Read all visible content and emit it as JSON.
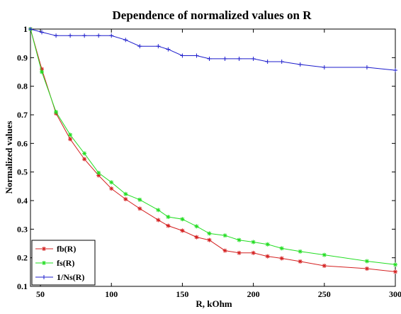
{
  "chart_data": {
    "type": "line",
    "title": "Dependence of normalized values on R",
    "xlabel": "R, kOhm",
    "ylabel": "Normalized values",
    "xlim": [
      43,
      300
    ],
    "ylim": [
      0.1,
      1.0
    ],
    "xticks": [
      "50",
      "100",
      "150",
      "200",
      "250",
      "300"
    ],
    "yticks": [
      "0.1",
      "0.2",
      "0.3",
      "0.4",
      "0.5",
      "0.6",
      "0.7",
      "0.8",
      "0.9",
      "1"
    ],
    "grid": false,
    "legend_position": "bottom-left",
    "series": [
      {
        "name": "fb(R)",
        "color": "#d42020",
        "marker": "star",
        "points": [
          [
            43,
            1.0
          ],
          [
            51,
            0.86
          ],
          [
            61,
            0.705
          ],
          [
            71,
            0.615
          ],
          [
            81,
            0.545
          ],
          [
            91,
            0.488
          ],
          [
            100,
            0.442
          ],
          [
            110,
            0.405
          ],
          [
            120,
            0.372
          ],
          [
            133,
            0.332
          ],
          [
            140,
            0.312
          ],
          [
            150,
            0.295
          ],
          [
            160,
            0.272
          ],
          [
            169,
            0.262
          ],
          [
            180,
            0.225
          ],
          [
            190,
            0.217
          ],
          [
            200,
            0.217
          ],
          [
            210,
            0.205
          ],
          [
            220,
            0.198
          ],
          [
            233,
            0.187
          ],
          [
            250,
            0.172
          ],
          [
            280,
            0.162
          ],
          [
            300,
            0.151
          ]
        ]
      },
      {
        "name": "fs(R)",
        "color": "#22dd22",
        "marker": "star",
        "points": [
          [
            43,
            1.0
          ],
          [
            51,
            0.85
          ],
          [
            61,
            0.71
          ],
          [
            71,
            0.63
          ],
          [
            81,
            0.565
          ],
          [
            91,
            0.497
          ],
          [
            100,
            0.464
          ],
          [
            110,
            0.423
          ],
          [
            120,
            0.403
          ],
          [
            133,
            0.367
          ],
          [
            140,
            0.343
          ],
          [
            150,
            0.335
          ],
          [
            160,
            0.31
          ],
          [
            169,
            0.285
          ],
          [
            180,
            0.278
          ],
          [
            190,
            0.262
          ],
          [
            200,
            0.255
          ],
          [
            210,
            0.247
          ],
          [
            220,
            0.233
          ],
          [
            233,
            0.222
          ],
          [
            250,
            0.21
          ],
          [
            280,
            0.188
          ],
          [
            300,
            0.176
          ]
        ]
      },
      {
        "name": "1/Ns(R)",
        "color": "#1c1ccc",
        "marker": "plus",
        "points": [
          [
            43,
            1.0
          ],
          [
            51,
            0.989
          ],
          [
            61,
            0.977
          ],
          [
            71,
            0.977
          ],
          [
            81,
            0.977
          ],
          [
            91,
            0.977
          ],
          [
            100,
            0.977
          ],
          [
            110,
            0.962
          ],
          [
            120,
            0.94
          ],
          [
            133,
            0.94
          ],
          [
            140,
            0.929
          ],
          [
            150,
            0.907
          ],
          [
            160,
            0.907
          ],
          [
            169,
            0.896
          ],
          [
            180,
            0.896
          ],
          [
            190,
            0.896
          ],
          [
            200,
            0.896
          ],
          [
            210,
            0.886
          ],
          [
            220,
            0.886
          ],
          [
            233,
            0.876
          ],
          [
            250,
            0.866
          ],
          [
            280,
            0.866
          ],
          [
            300,
            0.856
          ]
        ]
      }
    ]
  }
}
